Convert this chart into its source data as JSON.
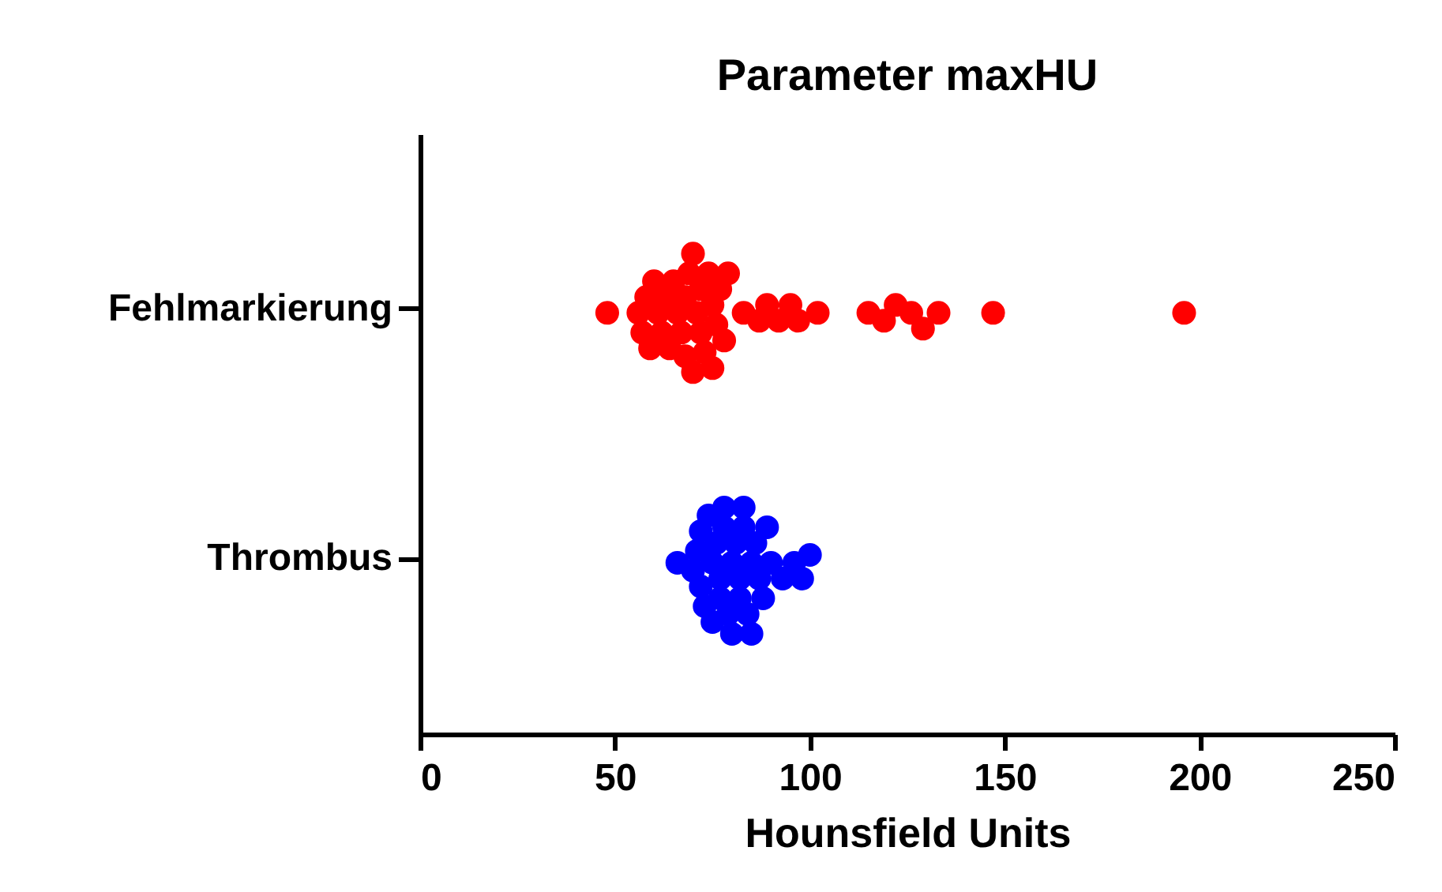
{
  "chart_data": {
    "type": "scatter",
    "orientation": "horizontal",
    "title": "Parameter maxHU",
    "xlabel": "Hounsfield Units",
    "categories": [
      "Fehlmarkierung",
      "Thrombus"
    ],
    "xlim": [
      0,
      250
    ],
    "xticks": [
      0,
      50,
      100,
      150,
      200,
      250
    ],
    "grid": false,
    "legend": false,
    "marker": "circle",
    "series": [
      {
        "color": "#ff0000",
        "x": [
          "Fehlmarkierung",
          "Fehlmarkierung",
          "Fehlmarkierung",
          "Fehlmarkierung",
          "Fehlmarkierung",
          "Fehlmarkierung",
          "Fehlmarkierung",
          "Fehlmarkierung",
          "Fehlmarkierung",
          "Fehlmarkierung",
          "Fehlmarkierung",
          "Fehlmarkierung",
          "Fehlmarkierung",
          "Fehlmarkierung",
          "Fehlmarkierung",
          "Fehlmarkierung",
          "Fehlmarkierung",
          "Fehlmarkierung",
          "Fehlmarkierung",
          "Fehlmarkierung",
          "Fehlmarkierung",
          "Fehlmarkierung",
          "Fehlmarkierung",
          "Fehlmarkierung",
          "Fehlmarkierung",
          "Fehlmarkierung",
          "Fehlmarkierung",
          "Fehlmarkierung",
          "Fehlmarkierung",
          "Fehlmarkierung",
          "Fehlmarkierung",
          "Fehlmarkierung",
          "Fehlmarkierung",
          "Fehlmarkierung",
          "Fehlmarkierung",
          "Fehlmarkierung",
          "Fehlmarkierung",
          "Fehlmarkierung",
          "Fehlmarkierung",
          "Fehlmarkierung",
          "Fehlmarkierung",
          "Fehlmarkierung",
          "Fehlmarkierung",
          "Fehlmarkierung"
        ],
        "values": [
          48,
          56,
          57,
          58,
          59,
          60,
          61,
          62,
          63,
          64,
          65,
          66,
          67,
          68,
          68,
          69,
          70,
          70,
          71,
          72,
          72,
          73,
          74,
          75,
          75,
          76,
          77,
          78,
          79,
          83,
          87,
          89,
          92,
          95,
          97,
          102,
          115,
          119,
          122,
          126,
          129,
          133,
          147,
          196
        ]
      },
      {
        "color": "#0000ff",
        "x": [
          "Thrombus",
          "Thrombus",
          "Thrombus",
          "Thrombus",
          "Thrombus",
          "Thrombus",
          "Thrombus",
          "Thrombus",
          "Thrombus",
          "Thrombus",
          "Thrombus",
          "Thrombus",
          "Thrombus",
          "Thrombus",
          "Thrombus",
          "Thrombus",
          "Thrombus",
          "Thrombus",
          "Thrombus",
          "Thrombus",
          "Thrombus",
          "Thrombus",
          "Thrombus",
          "Thrombus",
          "Thrombus",
          "Thrombus",
          "Thrombus",
          "Thrombus",
          "Thrombus",
          "Thrombus",
          "Thrombus",
          "Thrombus",
          "Thrombus",
          "Thrombus"
        ],
        "values": [
          66,
          70,
          71,
          72,
          72,
          73,
          74,
          75,
          75,
          76,
          77,
          77,
          78,
          78,
          79,
          80,
          80,
          81,
          82,
          82,
          83,
          83,
          84,
          85,
          85,
          86,
          87,
          88,
          89,
          90,
          93,
          96,
          98,
          100
        ]
      }
    ]
  }
}
